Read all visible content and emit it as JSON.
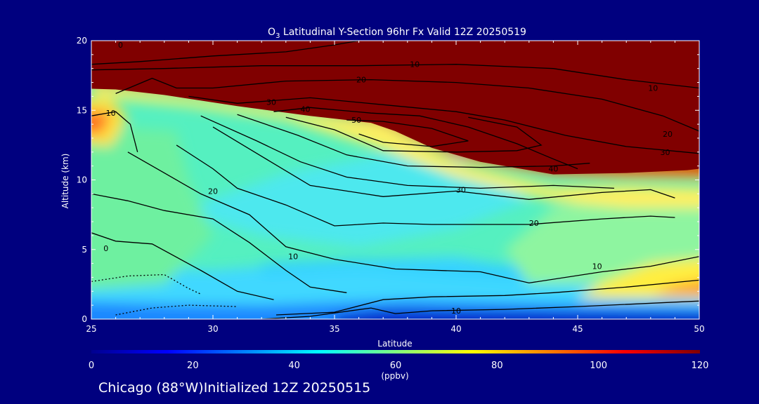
{
  "chart_data": {
    "type": "heatmap",
    "title_main": "O",
    "title_sub": "3",
    "title_rest": " Latitudinal Y-Section 96hr  Fx Valid 12Z 20250519",
    "xlabel": "Latitude",
    "ylabel": "Altitude (km)",
    "xlim": [
      25,
      50
    ],
    "ylim": [
      0,
      20
    ],
    "x_ticks": [
      "25",
      "30",
      "35",
      "40",
      "45",
      "50"
    ],
    "y_ticks": [
      "0",
      "5",
      "10",
      "15",
      "20"
    ],
    "colorbar": {
      "min": 0,
      "max": 120,
      "ticks": [
        "0",
        "20",
        "40",
        "60",
        "80",
        "100",
        "120"
      ],
      "label": "(ppbv)"
    },
    "colormap": [
      "#00008f",
      "#0000ff",
      "#0080ff",
      "#00ffff",
      "#80ff80",
      "#ffff00",
      "#ff8000",
      "#ff0000",
      "#800000"
    ],
    "contour_levels": [
      0,
      10,
      20,
      30,
      40,
      50
    ],
    "contour_labels": [
      {
        "text": "0",
        "x": 26.2,
        "y": 19.7
      },
      {
        "text": "10",
        "x": 38.3,
        "y": 18.3
      },
      {
        "text": "20",
        "x": 36.1,
        "y": 17.2
      },
      {
        "text": "10",
        "x": 48.1,
        "y": 16.6
      },
      {
        "text": "30",
        "x": 32.4,
        "y": 15.6
      },
      {
        "text": "40",
        "x": 33.8,
        "y": 15.1
      },
      {
        "text": "50",
        "x": 35.9,
        "y": 14.3
      },
      {
        "text": "10",
        "x": 25.8,
        "y": 14.8
      },
      {
        "text": "20",
        "x": 48.7,
        "y": 13.3
      },
      {
        "text": "30",
        "x": 48.6,
        "y": 12.0
      },
      {
        "text": "40",
        "x": 44.0,
        "y": 10.8
      },
      {
        "text": "30",
        "x": 40.2,
        "y": 9.3
      },
      {
        "text": "20",
        "x": 30.0,
        "y": 9.2
      },
      {
        "text": "20",
        "x": 43.2,
        "y": 6.9
      },
      {
        "text": "0",
        "x": 25.6,
        "y": 5.1
      },
      {
        "text": "10",
        "x": 33.3,
        "y": 4.5
      },
      {
        "text": "10",
        "x": 45.8,
        "y": 3.8
      },
      {
        "text": "10",
        "x": 40.0,
        "y": 0.6
      }
    ]
  },
  "footer": "Chicago (88°W)Initialized 12Z 20250515"
}
